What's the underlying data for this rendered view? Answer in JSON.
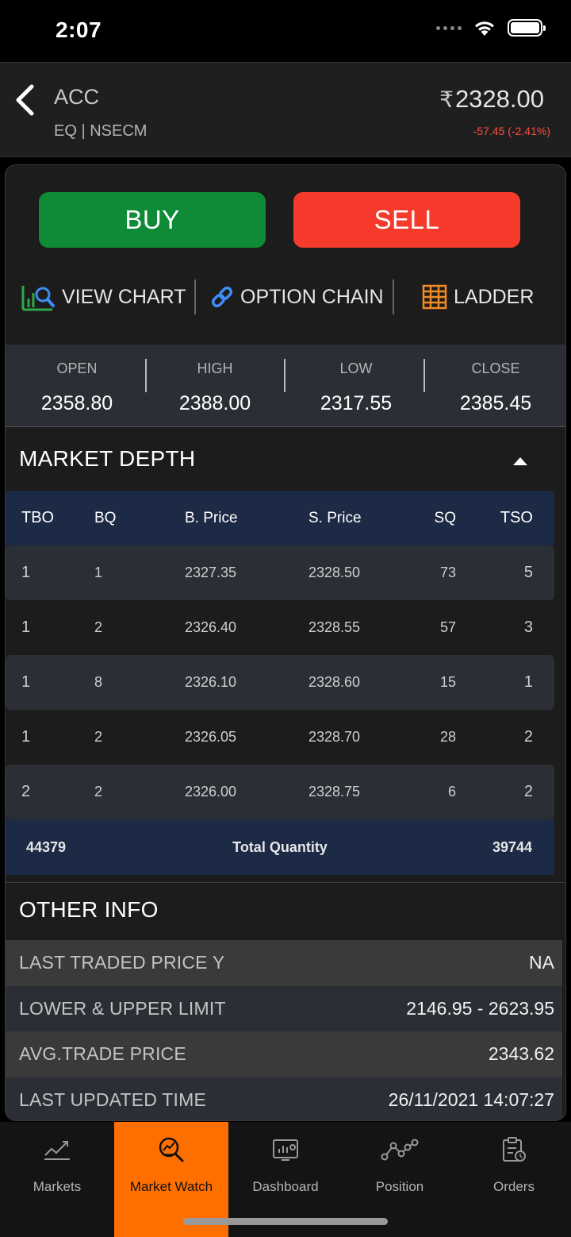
{
  "status_bar": {
    "time": "2:07"
  },
  "header": {
    "symbol": "ACC",
    "exchange": "EQ | NSECM",
    "currency": "₹",
    "ltp": "2328.00",
    "change": "-57.45 (-2.41%)"
  },
  "actions": {
    "buy_label": "BUY",
    "sell_label": "SELL"
  },
  "tools": {
    "chart": "VIEW CHART",
    "option_chain": "OPTION CHAIN",
    "ladder": "LADDER"
  },
  "ohlc": [
    {
      "label": "OPEN",
      "value": "2358.80"
    },
    {
      "label": "HIGH",
      "value": "2388.00"
    },
    {
      "label": "LOW",
      "value": "2317.55"
    },
    {
      "label": "CLOSE",
      "value": "2385.45"
    }
  ],
  "market_depth": {
    "title": "MARKET DEPTH",
    "columns": {
      "tbo": "TBO",
      "bq": "BQ",
      "bprice": "B. Price",
      "sprice": "S. Price",
      "sq": "SQ",
      "tso": "TSO"
    },
    "rows": [
      {
        "tbo": "1",
        "bq": "1",
        "bprice": "2327.35",
        "sprice": "2328.50",
        "sq": "73",
        "tso": "5"
      },
      {
        "tbo": "1",
        "bq": "2",
        "bprice": "2326.40",
        "sprice": "2328.55",
        "sq": "57",
        "tso": "3"
      },
      {
        "tbo": "1",
        "bq": "8",
        "bprice": "2326.10",
        "sprice": "2328.60",
        "sq": "15",
        "tso": "1"
      },
      {
        "tbo": "1",
        "bq": "2",
        "bprice": "2326.05",
        "sprice": "2328.70",
        "sq": "28",
        "tso": "2"
      },
      {
        "tbo": "2",
        "bq": "2",
        "bprice": "2326.00",
        "sprice": "2328.75",
        "sq": "6",
        "tso": "2"
      }
    ],
    "total": {
      "buy": "44379",
      "label": "Total Quantity",
      "sell": "39744"
    }
  },
  "other_info": {
    "title": "OTHER INFO",
    "rows": [
      {
        "label": "LAST TRADED PRICE Y",
        "value": "NA"
      },
      {
        "label": "LOWER & UPPER LIMIT",
        "value": "2146.95 - 2623.95"
      },
      {
        "label": "AVG.TRADE PRICE",
        "value": "2343.62"
      },
      {
        "label": "LAST UPDATED TIME",
        "value": "26/11/2021 14:07:27"
      }
    ]
  },
  "bottom_nav": [
    {
      "label": "Markets",
      "icon": "trend-up-icon"
    },
    {
      "label": "Market Watch",
      "icon": "market-watch-icon",
      "active": true
    },
    {
      "label": "Dashboard",
      "icon": "dashboard-icon"
    },
    {
      "label": "Position",
      "icon": "position-icon"
    },
    {
      "label": "Orders",
      "icon": "orders-icon"
    }
  ],
  "colors": {
    "buy": "#0f8a36",
    "sell": "#f63b2c",
    "negative_change": "#ff4b3e",
    "active_tab": "#ff6f00",
    "depth_header": "#1d2a45"
  }
}
